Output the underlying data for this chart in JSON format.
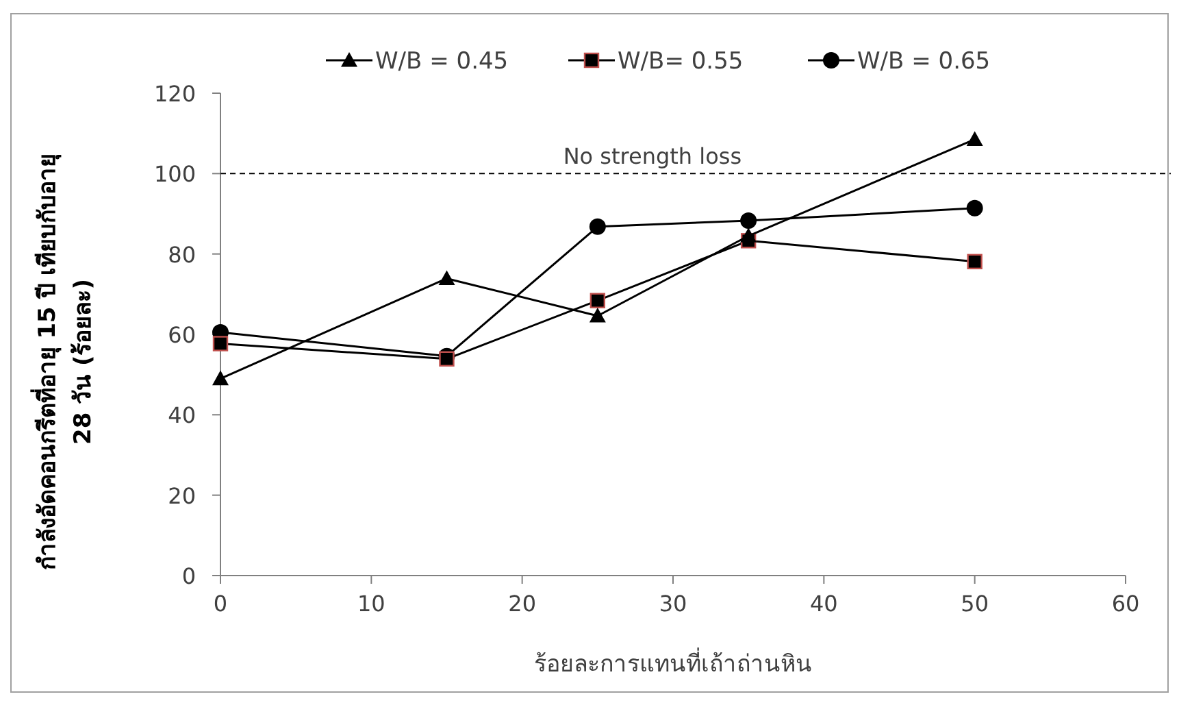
{
  "chart_data": {
    "type": "line",
    "xlabel": "ร้อยละการแทนที่เถ้าถ่านหิน",
    "ylabel": "กำลังอัดคอนกรีตที่อายุ 15 ปี เทียบกับอายุ\n28  วัน (ร้อยละ)",
    "xlim": [
      0,
      60
    ],
    "xticks": [
      0,
      10,
      20,
      30,
      40,
      50,
      60
    ],
    "ylim": [
      0,
      120
    ],
    "yticks": [
      0,
      20,
      40,
      60,
      80,
      100,
      120
    ],
    "grid": false,
    "legend": "top",
    "ref_lines": [
      {
        "axis": "y",
        "value": 100,
        "label": "No strength loss",
        "color": "#000000",
        "line_style": "dashed"
      }
    ],
    "series": [
      {
        "name": "W/B = 0.45",
        "color": "#000000",
        "marker": "triangle",
        "x": [
          0,
          15,
          25,
          35,
          50
        ],
        "values": [
          49.0,
          73.9,
          64.6,
          84.5,
          108.5
        ]
      },
      {
        "name": "W/B= 0.55",
        "color": "#000000",
        "marker": "square",
        "x": [
          0,
          15,
          25,
          35,
          50
        ],
        "values": [
          57.7,
          53.9,
          68.4,
          83.3,
          78.1
        ]
      },
      {
        "name": "W/B = 0.65",
        "color": "#000000",
        "marker": "circle",
        "x": [
          0,
          15,
          25,
          35,
          50
        ],
        "values": [
          60.5,
          54.6,
          86.8,
          88.3,
          91.4
        ]
      }
    ]
  }
}
